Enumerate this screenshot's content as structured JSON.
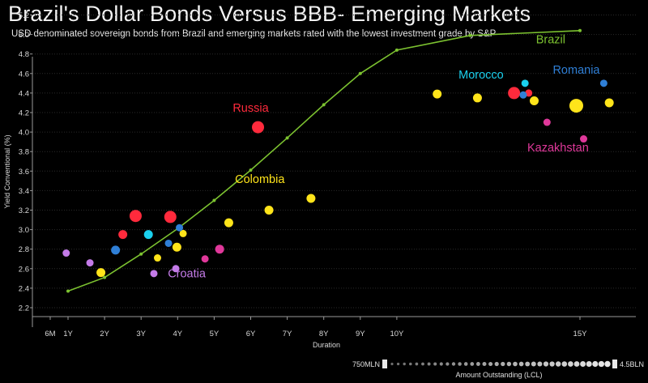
{
  "chart_data": {
    "type": "scatter",
    "title": "Brazil's Dollar Bonds Versus BBB- Emerging Markets",
    "subtitle": "USD denominated sovereign bonds from Brazil and emerging markets rated with the lowest investment grade by S&P",
    "xlabel": "Duration",
    "ylabel": "Yield Conventional (%)",
    "ylim": [
      2.1,
      5.2
    ],
    "y_ticks": [
      "2.2",
      "2.4",
      "2.6",
      "2.8",
      "3.0",
      "3.2",
      "3.4",
      "3.6",
      "3.8",
      "4.0",
      "4.2",
      "4.4",
      "4.6",
      "4.8",
      "5.0",
      "5.2"
    ],
    "x_ticks": [
      {
        "label": "6M",
        "value": 0.5
      },
      {
        "label": "1Y",
        "value": 1
      },
      {
        "label": "2Y",
        "value": 2
      },
      {
        "label": "3Y",
        "value": 3
      },
      {
        "label": "4Y",
        "value": 4
      },
      {
        "label": "5Y",
        "value": 5
      },
      {
        "label": "6Y",
        "value": 6
      },
      {
        "label": "7Y",
        "value": 7
      },
      {
        "label": "8Y",
        "value": 8
      },
      {
        "label": "9Y",
        "value": 9
      },
      {
        "label": "10Y",
        "value": 10
      },
      {
        "label": "15Y",
        "value": 15
      }
    ],
    "colors": {
      "brazil": "#7cc230",
      "russia": "#ff2a3c",
      "colombia": "#ffe41a",
      "morocco": "#1ad0ee",
      "romania": "#2f7fd6",
      "kazakhstan": "#e0389a",
      "croatia": "#c47be8"
    },
    "curve": {
      "name": "Brazil",
      "x": [
        1,
        2,
        3,
        4,
        5,
        6,
        7,
        8,
        9,
        10,
        12,
        15
      ],
      "y": [
        2.37,
        2.51,
        2.75,
        3.01,
        3.3,
        3.61,
        3.94,
        4.28,
        4.6,
        4.84,
        4.99,
        5.04
      ]
    },
    "annotations": [
      {
        "text": "Brazil",
        "x": 14.2,
        "y": 4.91,
        "color": "#7cc230"
      },
      {
        "text": "Russia",
        "x": 6.0,
        "y": 4.21,
        "color": "#ff2a3c"
      },
      {
        "text": "Colombia",
        "x": 6.25,
        "y": 3.48,
        "color": "#ffe41a"
      },
      {
        "text": "Morocco",
        "x": 12.3,
        "y": 4.55,
        "color": "#1ad0ee"
      },
      {
        "text": "Romania",
        "x": 14.9,
        "y": 4.6,
        "color": "#2f7fd6"
      },
      {
        "text": "Kazakhstan",
        "x": 14.4,
        "y": 3.8,
        "color": "#e0389a"
      },
      {
        "text": "Croatia",
        "x": 4.25,
        "y": 2.51,
        "color": "#c47be8"
      }
    ],
    "series": [
      {
        "name": "Russia",
        "color": "#ff2a3c",
        "points": [
          {
            "x": 2.5,
            "y": 2.95,
            "size": "m"
          },
          {
            "x": 2.85,
            "y": 3.14,
            "size": "l"
          },
          {
            "x": 3.8,
            "y": 3.13,
            "size": "l"
          },
          {
            "x": 6.2,
            "y": 4.05,
            "size": "l"
          },
          {
            "x": 13.2,
            "y": 4.4,
            "size": "l"
          },
          {
            "x": 13.6,
            "y": 4.4,
            "size": "s"
          }
        ]
      },
      {
        "name": "Colombia",
        "color": "#ffe41a",
        "points": [
          {
            "x": 1.9,
            "y": 2.56,
            "size": "m"
          },
          {
            "x": 3.45,
            "y": 2.71,
            "size": "s"
          },
          {
            "x": 3.98,
            "y": 2.82,
            "size": "m"
          },
          {
            "x": 4.15,
            "y": 2.96,
            "size": "s"
          },
          {
            "x": 5.4,
            "y": 3.07,
            "size": "m"
          },
          {
            "x": 6.5,
            "y": 3.2,
            "size": "m"
          },
          {
            "x": 7.65,
            "y": 3.32,
            "size": "m"
          },
          {
            "x": 11.1,
            "y": 4.39,
            "size": "m"
          },
          {
            "x": 12.2,
            "y": 4.35,
            "size": "m"
          },
          {
            "x": 13.75,
            "y": 4.32,
            "size": "m"
          },
          {
            "x": 14.9,
            "y": 4.27,
            "size": "l"
          },
          {
            "x": 15.8,
            "y": 4.3,
            "size": "m"
          }
        ]
      },
      {
        "name": "Morocco",
        "color": "#1ad0ee",
        "points": [
          {
            "x": 3.2,
            "y": 2.95,
            "size": "m"
          },
          {
            "x": 13.5,
            "y": 4.5,
            "size": "s"
          }
        ]
      },
      {
        "name": "Romania",
        "color": "#2f7fd6",
        "points": [
          {
            "x": 2.3,
            "y": 2.79,
            "size": "m"
          },
          {
            "x": 3.75,
            "y": 2.86,
            "size": "s"
          },
          {
            "x": 4.05,
            "y": 3.02,
            "size": "s"
          },
          {
            "x": 13.45,
            "y": 4.38,
            "size": "s"
          },
          {
            "x": 15.65,
            "y": 4.5,
            "size": "s"
          }
        ]
      },
      {
        "name": "Kazakhstan",
        "color": "#e0389a",
        "points": [
          {
            "x": 4.75,
            "y": 2.7,
            "size": "s"
          },
          {
            "x": 5.15,
            "y": 2.8,
            "size": "m"
          },
          {
            "x": 14.1,
            "y": 4.1,
            "size": "s"
          },
          {
            "x": 15.1,
            "y": 3.93,
            "size": "s"
          }
        ]
      },
      {
        "name": "Croatia",
        "color": "#c47be8",
        "points": [
          {
            "x": 0.95,
            "y": 2.76,
            "size": "s"
          },
          {
            "x": 1.6,
            "y": 2.66,
            "size": "s"
          },
          {
            "x": 3.35,
            "y": 2.55,
            "size": "s"
          },
          {
            "x": 3.95,
            "y": 2.6,
            "size": "s"
          }
        ]
      }
    ],
    "size_legend": {
      "min_label": "750MLN",
      "max_label": "4.5BLN",
      "title": "Amount Outstanding (LCL)"
    }
  }
}
